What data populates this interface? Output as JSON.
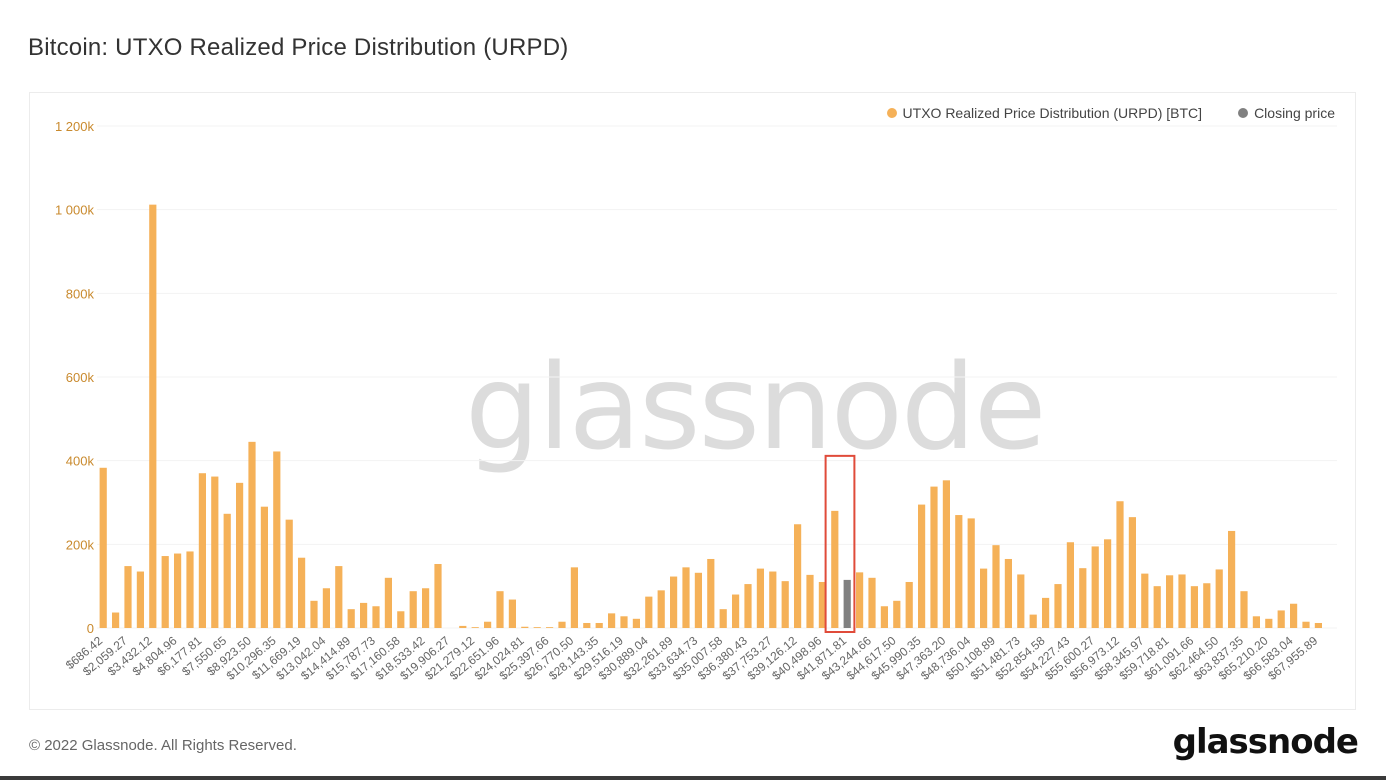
{
  "header": {
    "title": "Bitcoin: UTXO Realized Price Distribution (URPD)"
  },
  "legend": {
    "items": [
      {
        "label": "UTXO Realized Price Distribution (URPD) [BTC]",
        "color": "#f5b158"
      },
      {
        "label": "Closing price",
        "color": "#808080"
      }
    ]
  },
  "watermark": "glassnode",
  "footer": {
    "copyright": "© 2022 Glassnode. All Rights Reserved.",
    "brand": "glassnode"
  },
  "chart_data": {
    "type": "bar",
    "title": "Bitcoin: UTXO Realized Price Distribution (URPD)",
    "ylim": [
      0,
      1200000
    ],
    "yticks": [
      0,
      200000,
      400000,
      600000,
      800000,
      1000000,
      1200000
    ],
    "ytick_labels": [
      "0",
      "200k",
      "400k",
      "600k",
      "800k",
      "1 000k",
      "1 200k"
    ],
    "colors": {
      "bar": "#f5b158",
      "closing": "#808080",
      "highlight": "#e04b3a",
      "axis_text": "#c98a2e"
    },
    "categories": [
      "$686.42",
      "",
      "$2,059.27",
      "",
      "$3,432.12",
      "",
      "$4,804.96",
      "",
      "$6,177.81",
      "",
      "$7,550.65",
      "",
      "$8,923.50",
      "",
      "$10,296.35",
      "",
      "$11,669.19",
      "",
      "$13,042.04",
      "",
      "$14,414.89",
      "",
      "$15,787.73",
      "",
      "$17,160.58",
      "",
      "$18,533.42",
      "",
      "$19,906.27",
      "",
      "$21,279.12",
      "",
      "$22,651.96",
      "",
      "$24,024.81",
      "",
      "$25,397.66",
      "",
      "$26,770.50",
      "",
      "$28,143.35",
      "",
      "$29,516.19",
      "",
      "$30,889.04",
      "",
      "$32,261.89",
      "",
      "$33,634.73",
      "",
      "$35,007.58",
      "",
      "$36,380.43",
      "",
      "$37,753.27",
      "",
      "$39,126.12",
      "",
      "$40,498.96",
      "",
      "$41,871.81",
      "",
      "$43,244.66",
      "",
      "$44,617.50",
      "",
      "$45,990.35",
      "",
      "$47,363.20",
      "",
      "$48,736.04",
      "",
      "$50,108.89",
      "",
      "$51,481.73",
      "",
      "$52,854.58",
      "",
      "$54,227.43",
      "",
      "$55,600.27",
      "",
      "$56,973.12",
      "",
      "$58,345.97",
      "",
      "$59,718.81",
      "",
      "$61,091.66",
      "",
      "$62,464.50",
      "",
      "$63,837.35",
      "",
      "$65,210.20",
      "",
      "$66,583.04",
      "",
      "$67,955.89",
      ""
    ],
    "values": [
      383000,
      37000,
      148000,
      135000,
      1012000,
      172000,
      178000,
      183000,
      370000,
      362000,
      273000,
      347000,
      445000,
      290000,
      422000,
      259000,
      168000,
      65000,
      95000,
      148000,
      45000,
      60000,
      52000,
      120000,
      40000,
      88000,
      95000,
      153000,
      0,
      5000,
      2000,
      15000,
      88000,
      68000,
      3000,
      2000,
      2000,
      15000,
      145000,
      12000,
      12000,
      35000,
      28000,
      22000,
      75000,
      90000,
      123000,
      145000,
      132000,
      165000,
      45000,
      80000,
      105000,
      142000,
      135000,
      112000,
      248000,
      127000,
      110000,
      280000,
      0,
      133000,
      120000,
      52000,
      65000,
      110000,
      295000,
      338000,
      353000,
      270000,
      262000,
      142000,
      198000,
      165000,
      128000,
      32000,
      72000,
      105000,
      205000,
      143000,
      195000,
      212000,
      303000,
      265000,
      130000,
      100000,
      126000,
      128000,
      100000,
      107000,
      140000,
      232000,
      88000,
      28000,
      22000,
      42000,
      58000,
      15000,
      12000,
      0
    ],
    "closing_price": {
      "index": 60,
      "value": 115000
    },
    "highlight": {
      "from_index": 59,
      "to_index": 60
    }
  }
}
